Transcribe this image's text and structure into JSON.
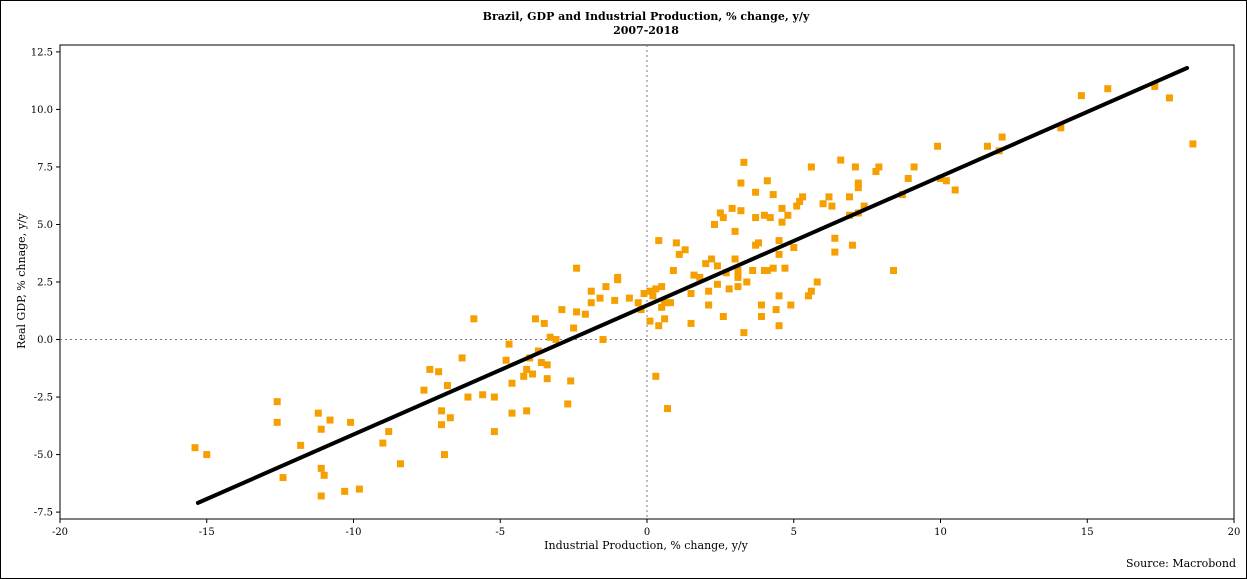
{
  "source": "Source: Macrobond",
  "chart_data": {
    "type": "scatter",
    "title": "Brazil, GDP and Industrial Production, % change, y/y",
    "subtitle": "2007-2018",
    "xlabel": "Industrial Production, % change, y/y",
    "ylabel": "Real GDP, % chnage, y/y",
    "xlim": [
      -20,
      20
    ],
    "ylim": [
      -7.8,
      12.8
    ],
    "xticks": [
      -20,
      -15,
      -10,
      -5,
      0,
      5,
      10,
      15,
      20
    ],
    "yticks": [
      -7.5,
      -5.0,
      -2.5,
      0.0,
      2.5,
      5.0,
      7.5,
      10.0,
      12.5
    ],
    "xtick_labels": [
      "-20",
      "-15",
      "-10",
      "-5",
      "0",
      "5",
      "10",
      "15",
      "20"
    ],
    "ytick_labels": [
      "-7.5",
      "-5.0",
      "-2.5",
      "0.0",
      "2.5",
      "5.0",
      "7.5",
      "10.0",
      "12.5"
    ],
    "zero_lines": true,
    "grid": false,
    "point_color": "#f5a000",
    "line_color": "#000000",
    "trendline": {
      "x": [
        -15.3,
        18.4
      ],
      "y": [
        -7.1,
        11.8
      ]
    },
    "points": [
      [
        -15.4,
        -4.7
      ],
      [
        -15.0,
        -5.0
      ],
      [
        -12.6,
        -2.7
      ],
      [
        -12.6,
        -3.6
      ],
      [
        -12.4,
        -6.0
      ],
      [
        -11.8,
        -4.6
      ],
      [
        -11.2,
        -3.2
      ],
      [
        -11.1,
        -3.9
      ],
      [
        -11.1,
        -5.6
      ],
      [
        -11.0,
        -5.9
      ],
      [
        -11.1,
        -6.8
      ],
      [
        -10.8,
        -3.5
      ],
      [
        -10.3,
        -6.6
      ],
      [
        -10.1,
        -3.6
      ],
      [
        -9.8,
        -6.5
      ],
      [
        -9.0,
        -4.5
      ],
      [
        -8.8,
        -4.0
      ],
      [
        -8.4,
        -5.4
      ],
      [
        -7.6,
        -2.2
      ],
      [
        -7.4,
        -1.3
      ],
      [
        -7.1,
        -1.4
      ],
      [
        -7.0,
        -3.1
      ],
      [
        -7.0,
        -3.7
      ],
      [
        -6.9,
        -5.0
      ],
      [
        -6.8,
        -2.0
      ],
      [
        -6.7,
        -3.4
      ],
      [
        -6.3,
        -0.8
      ],
      [
        -6.1,
        -2.5
      ],
      [
        -5.9,
        0.9
      ],
      [
        -5.6,
        -2.4
      ],
      [
        -5.2,
        -2.5
      ],
      [
        -5.2,
        -4.0
      ],
      [
        -4.8,
        -0.9
      ],
      [
        -4.7,
        -0.2
      ],
      [
        -4.6,
        -1.9
      ],
      [
        -4.6,
        -3.2
      ],
      [
        -4.2,
        -1.6
      ],
      [
        -4.1,
        -1.3
      ],
      [
        -4.1,
        -3.1
      ],
      [
        -4.0,
        -0.8
      ],
      [
        -3.9,
        -1.5
      ],
      [
        -3.8,
        0.9
      ],
      [
        -3.7,
        -0.5
      ],
      [
        -3.6,
        -1.0
      ],
      [
        -3.5,
        0.7
      ],
      [
        -3.4,
        -1.1
      ],
      [
        -3.4,
        -1.7
      ],
      [
        -3.3,
        0.1
      ],
      [
        -3.1,
        0.0
      ],
      [
        -2.9,
        1.3
      ],
      [
        -2.7,
        -2.8
      ],
      [
        -2.6,
        -1.8
      ],
      [
        -2.5,
        0.5
      ],
      [
        -2.4,
        3.1
      ],
      [
        -2.4,
        1.2
      ],
      [
        -2.1,
        1.1
      ],
      [
        -1.9,
        1.6
      ],
      [
        -1.9,
        2.1
      ],
      [
        -1.6,
        1.8
      ],
      [
        -1.5,
        0.0
      ],
      [
        -1.4,
        2.3
      ],
      [
        -1.1,
        1.7
      ],
      [
        -1.0,
        2.6
      ],
      [
        -1.0,
        2.7
      ],
      [
        -0.6,
        1.8
      ],
      [
        -0.3,
        1.6
      ],
      [
        -0.2,
        1.3
      ],
      [
        -0.1,
        2.0
      ],
      [
        0.1,
        2.1
      ],
      [
        0.2,
        1.9
      ],
      [
        0.1,
        0.8
      ],
      [
        0.3,
        2.2
      ],
      [
        0.3,
        -1.6
      ],
      [
        0.4,
        0.6
      ],
      [
        0.4,
        4.3
      ],
      [
        0.5,
        1.4
      ],
      [
        0.5,
        2.3
      ],
      [
        0.6,
        1.6
      ],
      [
        0.6,
        0.9
      ],
      [
        0.7,
        -3.0
      ],
      [
        0.8,
        1.6
      ],
      [
        0.9,
        3.0
      ],
      [
        1.0,
        4.2
      ],
      [
        1.1,
        3.7
      ],
      [
        1.3,
        3.9
      ],
      [
        1.5,
        0.7
      ],
      [
        1.5,
        2.0
      ],
      [
        1.6,
        2.8
      ],
      [
        1.8,
        2.7
      ],
      [
        2.0,
        3.3
      ],
      [
        2.1,
        1.5
      ],
      [
        2.1,
        2.1
      ],
      [
        2.2,
        3.5
      ],
      [
        2.3,
        5.0
      ],
      [
        2.4,
        3.2
      ],
      [
        2.4,
        2.4
      ],
      [
        2.5,
        5.5
      ],
      [
        2.6,
        1.0
      ],
      [
        2.6,
        5.3
      ],
      [
        2.7,
        2.9
      ],
      [
        2.8,
        2.2
      ],
      [
        2.9,
        5.7
      ],
      [
        3.0,
        4.7
      ],
      [
        3.0,
        3.5
      ],
      [
        3.1,
        2.3
      ],
      [
        3.1,
        3.0
      ],
      [
        3.1,
        2.7
      ],
      [
        3.2,
        5.6
      ],
      [
        3.2,
        6.8
      ],
      [
        3.3,
        7.7
      ],
      [
        3.3,
        0.3
      ],
      [
        3.4,
        2.5
      ],
      [
        3.6,
        3.0
      ],
      [
        3.7,
        6.4
      ],
      [
        3.7,
        4.1
      ],
      [
        3.7,
        5.3
      ],
      [
        3.8,
        4.2
      ],
      [
        3.9,
        1.5
      ],
      [
        3.9,
        1.0
      ],
      [
        4.0,
        3.0
      ],
      [
        4.0,
        5.4
      ],
      [
        4.1,
        6.9
      ],
      [
        4.1,
        3.0
      ],
      [
        4.2,
        5.3
      ],
      [
        4.3,
        6.3
      ],
      [
        4.3,
        3.1
      ],
      [
        4.4,
        1.3
      ],
      [
        4.5,
        0.6
      ],
      [
        4.5,
        1.9
      ],
      [
        4.5,
        3.7
      ],
      [
        4.5,
        4.3
      ],
      [
        4.6,
        5.7
      ],
      [
        4.6,
        5.1
      ],
      [
        4.7,
        3.1
      ],
      [
        4.8,
        5.4
      ],
      [
        4.9,
        1.5
      ],
      [
        5.0,
        4.0
      ],
      [
        5.1,
        5.8
      ],
      [
        5.2,
        6.0
      ],
      [
        5.3,
        6.2
      ],
      [
        5.5,
        1.9
      ],
      [
        5.6,
        7.5
      ],
      [
        5.6,
        2.1
      ],
      [
        5.8,
        2.5
      ],
      [
        6.0,
        5.9
      ],
      [
        6.2,
        6.2
      ],
      [
        6.3,
        5.8
      ],
      [
        6.4,
        4.4
      ],
      [
        6.4,
        3.8
      ],
      [
        6.6,
        7.8
      ],
      [
        6.9,
        6.2
      ],
      [
        6.9,
        5.4
      ],
      [
        7.0,
        4.1
      ],
      [
        7.1,
        7.5
      ],
      [
        7.2,
        6.8
      ],
      [
        7.2,
        6.6
      ],
      [
        7.2,
        5.5
      ],
      [
        7.4,
        5.8
      ],
      [
        7.8,
        7.3
      ],
      [
        7.9,
        7.5
      ],
      [
        8.4,
        3.0
      ],
      [
        8.7,
        6.3
      ],
      [
        8.9,
        7.0
      ],
      [
        9.1,
        7.5
      ],
      [
        9.9,
        8.4
      ],
      [
        10.0,
        7.0
      ],
      [
        10.2,
        6.9
      ],
      [
        10.5,
        6.5
      ],
      [
        11.6,
        8.4
      ],
      [
        12.0,
        8.2
      ],
      [
        12.1,
        8.8
      ],
      [
        14.1,
        9.2
      ],
      [
        14.8,
        10.6
      ],
      [
        15.7,
        10.9
      ],
      [
        17.3,
        11.0
      ],
      [
        17.8,
        10.5
      ],
      [
        18.6,
        8.5
      ]
    ]
  }
}
